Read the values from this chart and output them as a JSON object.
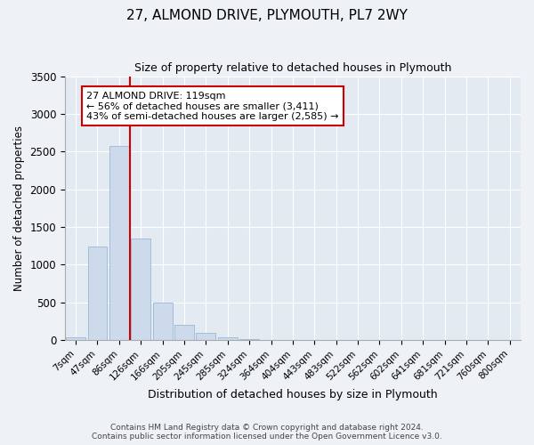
{
  "title": "27, ALMOND DRIVE, PLYMOUTH, PL7 2WY",
  "subtitle": "Size of property relative to detached houses in Plymouth",
  "xlabel": "Distribution of detached houses by size in Plymouth",
  "ylabel": "Number of detached properties",
  "bin_labels": [
    "7sqm",
    "47sqm",
    "86sqm",
    "126sqm",
    "166sqm",
    "205sqm",
    "245sqm",
    "285sqm",
    "324sqm",
    "364sqm",
    "404sqm",
    "443sqm",
    "483sqm",
    "522sqm",
    "562sqm",
    "602sqm",
    "641sqm",
    "681sqm",
    "721sqm",
    "760sqm",
    "800sqm"
  ],
  "bar_values": [
    40,
    1240,
    2580,
    1350,
    500,
    200,
    100,
    40,
    15,
    5,
    3,
    2,
    1,
    0,
    0,
    0,
    0,
    0,
    0,
    0,
    0
  ],
  "bar_color": "#ccdaeb",
  "bar_edge_color": "#99b8d4",
  "vline_x": 3.0,
  "vline_color": "#cc0000",
  "annotation_text": "27 ALMOND DRIVE: 119sqm\n← 56% of detached houses are smaller (3,411)\n43% of semi-detached houses are larger (2,585) →",
  "annotation_box_color": "#ffffff",
  "annotation_box_edge": "#cc0000",
  "ylim": [
    0,
    3500
  ],
  "yticks": [
    0,
    500,
    1000,
    1500,
    2000,
    2500,
    3000,
    3500
  ],
  "footer": "Contains HM Land Registry data © Crown copyright and database right 2024.\nContains public sector information licensed under the Open Government Licence v3.0.",
  "bg_color": "#eef2f7",
  "plot_bg_color": "#e4eaf2",
  "title_fontsize": 11,
  "subtitle_fontsize": 9,
  "annotation_fontsize": 8
}
